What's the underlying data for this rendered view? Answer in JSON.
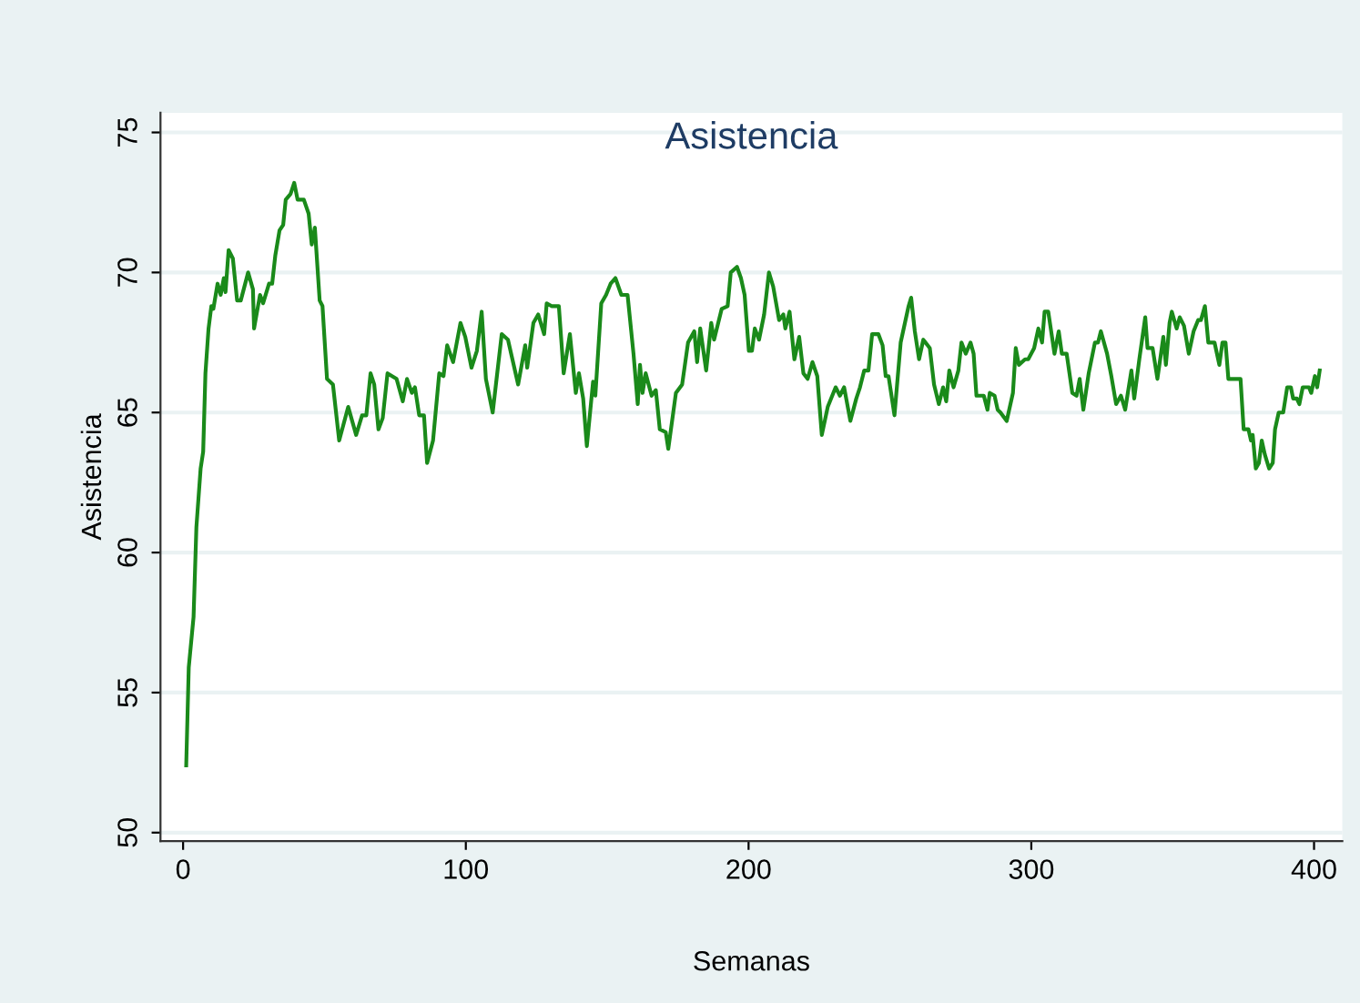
{
  "chart_data": {
    "type": "line",
    "title": "Asistencia",
    "xlabel": "Semanas",
    "ylabel": "Asistencia",
    "xlim": [
      -8,
      410
    ],
    "xticks": [
      0,
      100,
      200,
      300,
      400
    ],
    "ylim": [
      49.7,
      75.7
    ],
    "yticks": [
      50,
      55,
      60,
      65,
      70,
      75
    ],
    "grid": "y",
    "marker": "none",
    "line_style": "solid",
    "series": [
      {
        "color": "#1a8a1a",
        "x": [
          1.1,
          2,
          3.7,
          4.7,
          6.2,
          7.1,
          7.9,
          9,
          10,
          10.7,
          12.2,
          13.3,
          14.4,
          15,
          16.1,
          17.6,
          19.1,
          20.4,
          23,
          24.7,
          25.1,
          27.2,
          28.3,
          30.4,
          31.5,
          32.6,
          34.1,
          35.4,
          36.3,
          38,
          39.3,
          40.5,
          42.7,
          44.4,
          45.5,
          46.6,
          48.3,
          49.3,
          50.9,
          53,
          55.2,
          58.4,
          61.2,
          63.3,
          64.8,
          66.3,
          67.6,
          69.1,
          70.6,
          72.3,
          75.5,
          77.7,
          79.2,
          80.9,
          82,
          83.5,
          85.2,
          86.3,
          88.4,
          90.6,
          92.1,
          93.4,
          95.5,
          98.1,
          99.8,
          102,
          103.9,
          105.6,
          107.1,
          109.5,
          112.7,
          114.9,
          118.5,
          121,
          121.7,
          123.9,
          125.6,
          127.7,
          128.6,
          130.3,
          132.9,
          134.6,
          136.8,
          138.9,
          140,
          141.5,
          142.8,
          145,
          145.8,
          147.9,
          149.6,
          151.2,
          152.9,
          155,
          157.2,
          159.3,
          160.8,
          161.6,
          162.5,
          163.6,
          165.7,
          167.2,
          168.6,
          170.7,
          171.6,
          174.3,
          176.5,
          178.6,
          180.8,
          181.8,
          182.9,
          185,
          186.8,
          187.8,
          190.5,
          192.6,
          193.7,
          195.9,
          197.3,
          198.6,
          200.1,
          201.2,
          202.2,
          203.7,
          205.5,
          207.2,
          208.7,
          210.8,
          212.3,
          213,
          214.5,
          216.2,
          217.9,
          219.4,
          220.9,
          222.6,
          224.3,
          225.9,
          228,
          230.8,
          232.3,
          233.8,
          236,
          238.1,
          239.4,
          240.9,
          242.4,
          243.7,
          245.9,
          247.4,
          248.5,
          249.5,
          251.6,
          253.8,
          256.6,
          257.5,
          258.8,
          260.3,
          261.8,
          264.1,
          265.6,
          267.3,
          268.8,
          269.9,
          271,
          272.5,
          274.2,
          275.3,
          276.8,
          278.5,
          279.6,
          280.6,
          283.2,
          284.5,
          285.3,
          287,
          288.1,
          289.1,
          291.3,
          293.5,
          294.5,
          295.6,
          297.8,
          298.9,
          301,
          302.5,
          303.8,
          304.7,
          306,
          308.2,
          309.7,
          310.8,
          312.5,
          314.5,
          316,
          317.1,
          318.4,
          320.3,
          322.5,
          323.6,
          324.6,
          326.8,
          328.3,
          330,
          331.7,
          333.2,
          335.4,
          336.4,
          338.2,
          340.3,
          341.1,
          342.9,
          344.6,
          346.7,
          347.6,
          348.9,
          349.7,
          351.4,
          352.5,
          354,
          355.7,
          357.4,
          359,
          360,
          361.4,
          362.6,
          364.8,
          366.5,
          367.6,
          368.7,
          369.7,
          374,
          375.1,
          376.8,
          377.7,
          378.3,
          379.4,
          380.5,
          381.5,
          382.6,
          384.1,
          385.4,
          386.2,
          387.5,
          389.1,
          390.5,
          391.8,
          392.6,
          393.9,
          394.8,
          396,
          398.2,
          399,
          400.3,
          401.1,
          402
        ],
        "values": [
          52.4,
          55.9,
          57.7,
          60.9,
          63.0,
          63.6,
          66.4,
          68.0,
          68.8,
          68.7,
          69.6,
          69.2,
          69.8,
          69.3,
          70.8,
          70.5,
          69.0,
          69.0,
          70.0,
          69.4,
          68.0,
          69.2,
          68.9,
          69.6,
          69.6,
          70.6,
          71.5,
          71.7,
          72.6,
          72.8,
          73.2,
          72.6,
          72.6,
          72.1,
          71.0,
          71.6,
          69.0,
          68.8,
          66.2,
          66.0,
          64.0,
          65.2,
          64.2,
          64.9,
          64.9,
          66.4,
          66.0,
          64.4,
          64.8,
          66.4,
          66.2,
          65.4,
          66.2,
          65.7,
          65.9,
          64.9,
          64.9,
          63.2,
          64.0,
          66.4,
          66.3,
          67.4,
          66.8,
          68.2,
          67.7,
          66.6,
          67.2,
          68.6,
          66.2,
          65.0,
          67.8,
          67.6,
          66.0,
          67.4,
          66.6,
          68.2,
          68.5,
          67.8,
          68.9,
          68.8,
          68.8,
          66.4,
          67.8,
          65.7,
          66.4,
          65.5,
          63.8,
          66.1,
          65.6,
          68.9,
          69.2,
          69.6,
          69.8,
          69.2,
          69.2,
          67.1,
          65.3,
          66.7,
          65.7,
          66.4,
          65.6,
          65.8,
          64.4,
          64.3,
          63.7,
          65.7,
          66.0,
          67.5,
          67.9,
          66.8,
          68.0,
          66.5,
          68.2,
          67.6,
          68.7,
          68.8,
          70.0,
          70.2,
          69.8,
          69.2,
          67.2,
          67.2,
          68.0,
          67.6,
          68.5,
          70.0,
          69.5,
          68.3,
          68.5,
          68.0,
          68.6,
          66.9,
          67.7,
          66.4,
          66.2,
          66.8,
          66.3,
          64.2,
          65.2,
          65.9,
          65.6,
          65.9,
          64.7,
          65.5,
          65.9,
          66.5,
          66.5,
          67.8,
          67.8,
          67.4,
          66.3,
          66.3,
          64.9,
          67.5,
          68.8,
          69.1,
          67.9,
          66.9,
          67.6,
          67.3,
          66.0,
          65.3,
          65.9,
          65.4,
          66.5,
          65.9,
          66.5,
          67.5,
          67.1,
          67.5,
          67.1,
          65.6,
          65.6,
          65.1,
          65.7,
          65.6,
          65.1,
          65.0,
          64.7,
          65.7,
          67.3,
          66.7,
          66.9,
          66.9,
          67.3,
          68.0,
          67.5,
          68.6,
          68.6,
          67.1,
          67.9,
          67.1,
          67.1,
          65.7,
          65.6,
          66.2,
          65.1,
          66.4,
          67.5,
          67.5,
          67.9,
          67.1,
          66.3,
          65.3,
          65.6,
          65.1,
          66.5,
          65.5,
          66.9,
          68.4,
          67.3,
          67.3,
          66.2,
          67.7,
          66.7,
          68.2,
          68.6,
          68.0,
          68.4,
          68.1,
          67.1,
          67.9,
          68.3,
          68.3,
          68.8,
          67.5,
          67.5,
          66.7,
          67.5,
          67.5,
          66.2,
          66.2,
          64.4,
          64.4,
          64.0,
          64.2,
          63.0,
          63.2,
          64.0,
          63.5,
          63.0,
          63.2,
          64.4,
          65.0,
          65.0,
          65.9,
          65.9,
          65.5,
          65.5,
          65.3,
          65.9,
          65.9,
          65.7,
          66.3,
          65.9,
          66.5
        ]
      }
    ]
  }
}
